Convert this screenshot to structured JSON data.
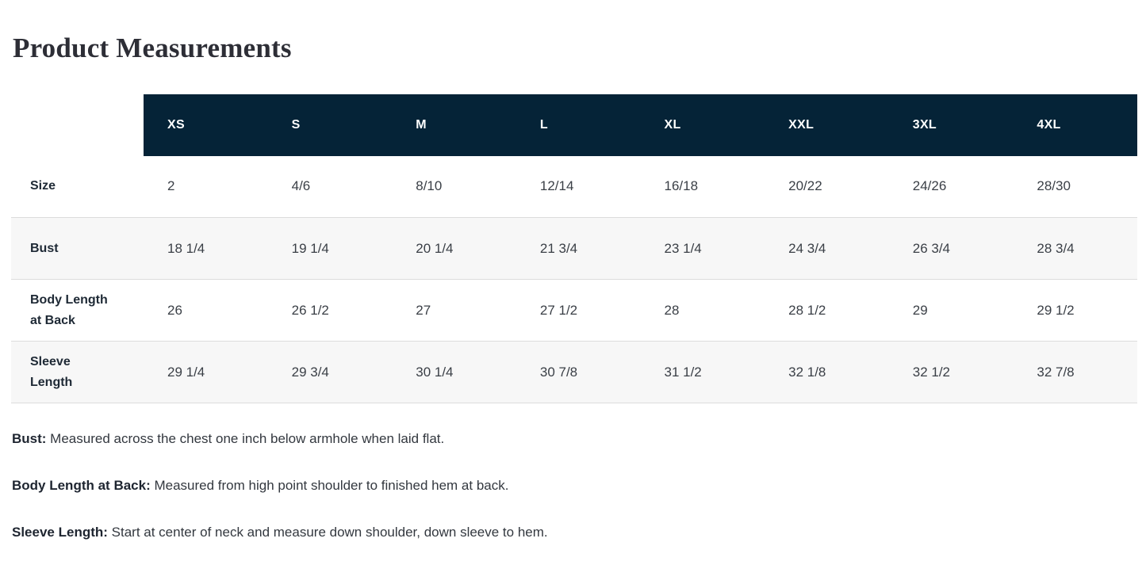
{
  "page_title": "Product Measurements",
  "colors": {
    "header_bg": "#052337",
    "header_text": "#ffffff",
    "striped_row_bg": "#f7f7f7",
    "row_border": "#dcdcdc",
    "row_label_text": "#1e2935",
    "cell_text": "#3a3f46",
    "title_text": "#2d2e36"
  },
  "measurements_table": {
    "size_headers": [
      "XS",
      "S",
      "M",
      "L",
      "XL",
      "XXL",
      "3XL",
      "4XL"
    ],
    "rows": [
      {
        "label": "Size",
        "values": [
          "2",
          "4/6",
          "8/10",
          "12/14",
          "16/18",
          "20/22",
          "24/26",
          "28/30"
        ]
      },
      {
        "label": "Bust",
        "values": [
          "18 1/4",
          "19 1/4",
          "20 1/4",
          "21 3/4",
          "23 1/4",
          "24 3/4",
          "26 3/4",
          "28 3/4"
        ]
      },
      {
        "label": "Body Length at Back",
        "values": [
          "26",
          "26 1/2",
          "27",
          "27 1/2",
          "28",
          "28 1/2",
          "29",
          "29 1/2"
        ]
      },
      {
        "label": "Sleeve Length",
        "values": [
          "29 1/4",
          "29 3/4",
          "30 1/4",
          "30 7/8",
          "31 1/2",
          "32 1/8",
          "32 1/2",
          "32 7/8"
        ]
      }
    ]
  },
  "notes": [
    {
      "term": "Bust:",
      "definition": " Measured across the chest one inch below armhole when laid flat."
    },
    {
      "term": "Body Length at Back:",
      "definition": " Measured from high point shoulder to finished hem at back."
    },
    {
      "term": "Sleeve Length:",
      "definition": " Start at center of neck and measure down shoulder, down sleeve to hem."
    }
  ]
}
